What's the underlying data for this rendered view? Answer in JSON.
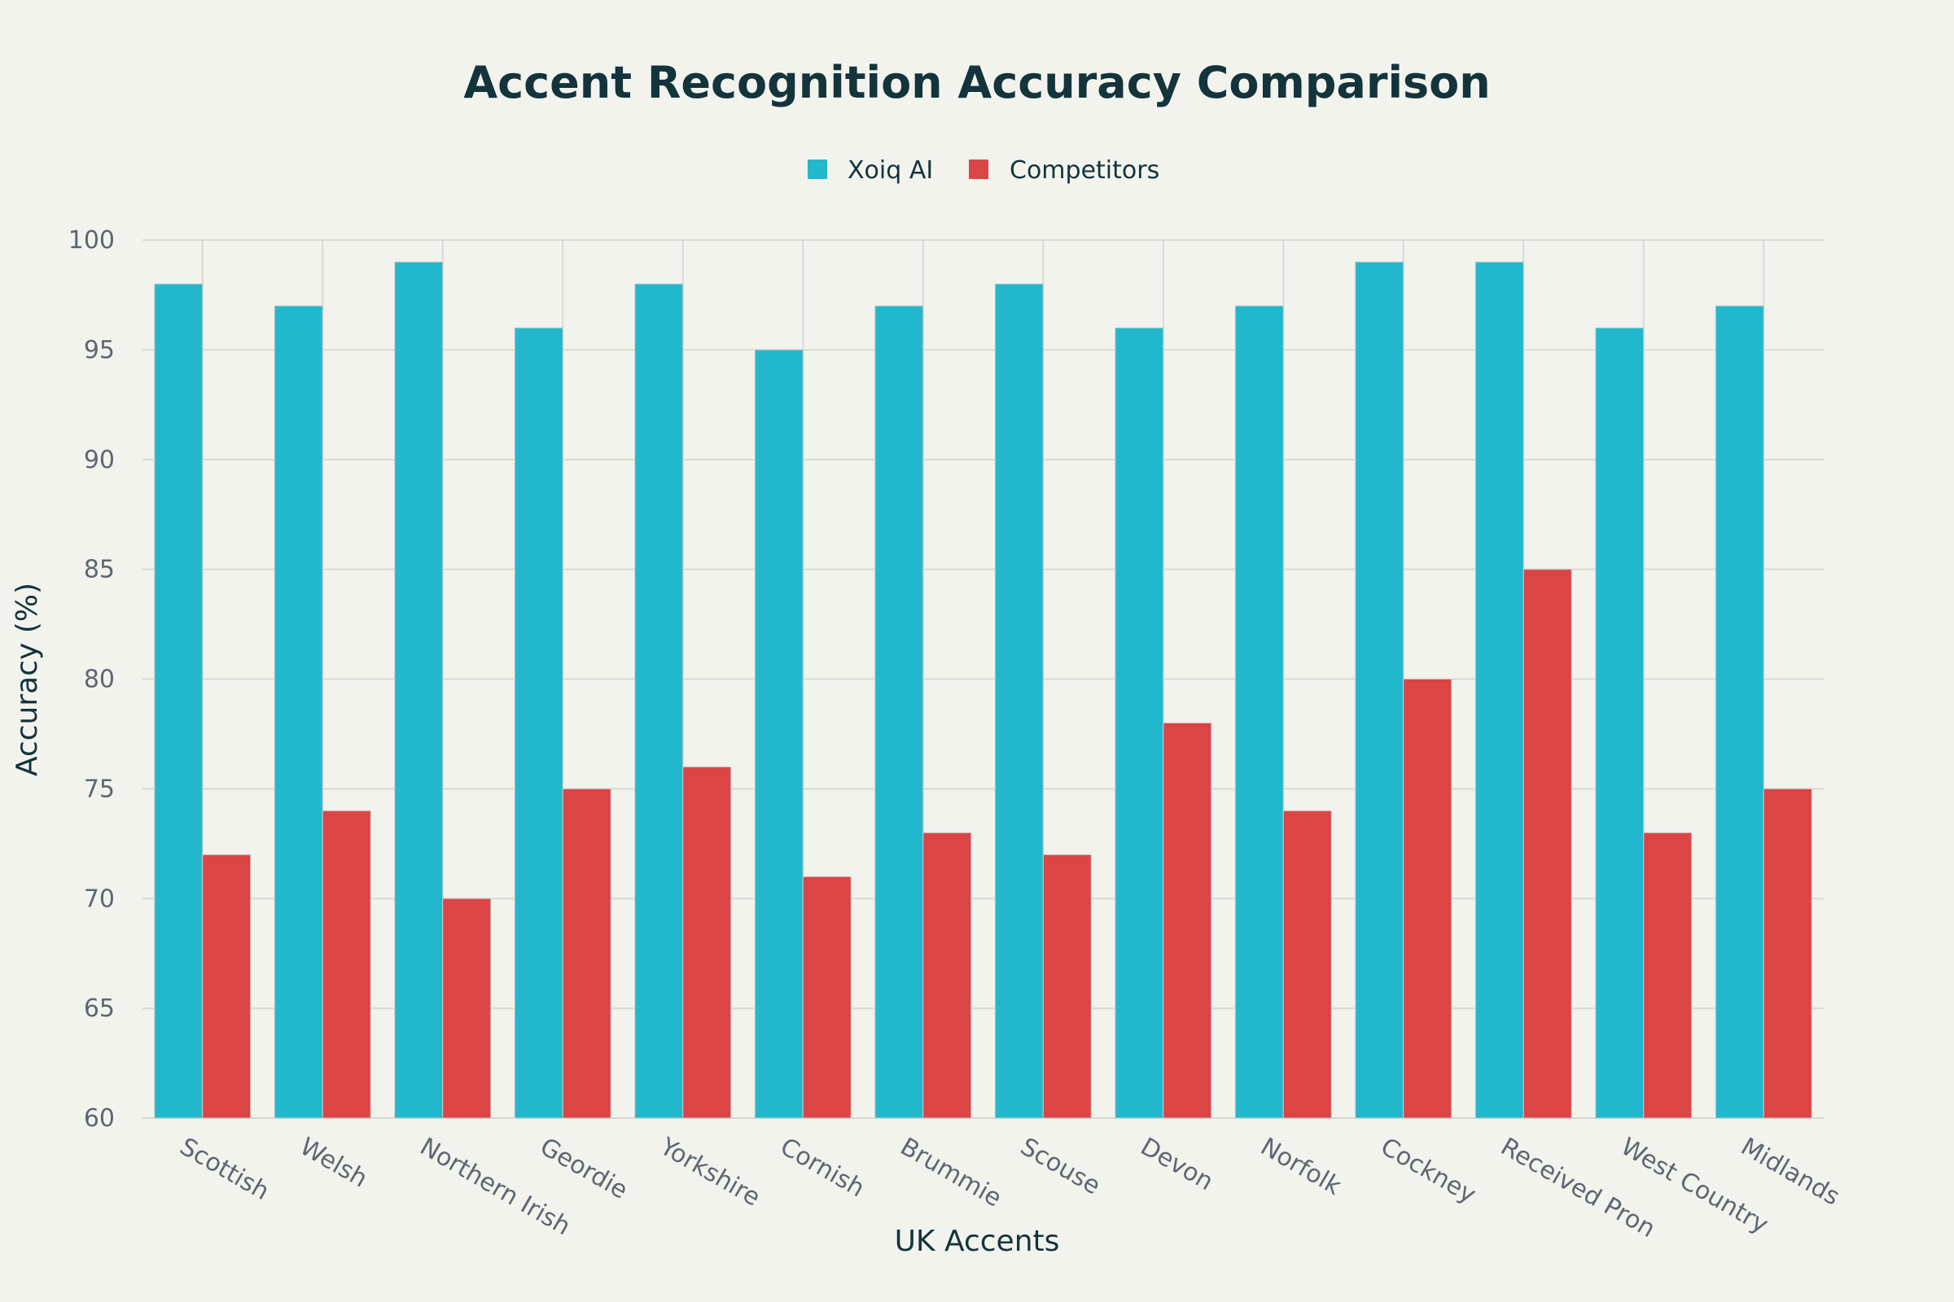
{
  "chart_data": {
    "type": "bar",
    "title": "Accent Recognition Accuracy Comparison",
    "xlabel": "UK Accents",
    "ylabel": "Accuracy (%)",
    "ylim": [
      60,
      100
    ],
    "yticks": [
      60,
      65,
      70,
      75,
      80,
      85,
      90,
      95,
      100
    ],
    "grid": true,
    "legend_placement": "top-center",
    "categories": [
      "Scottish",
      "Welsh",
      "Northern Irish",
      "Geordie",
      "Yorkshire",
      "Cornish",
      "Brummie",
      "Scouse",
      "Devon",
      "Norfolk",
      "Cockney",
      "Received Pron",
      "West Country",
      "Midlands"
    ],
    "series": [
      {
        "name": "Xoiq AI",
        "color": "#21b8cd",
        "values": [
          98,
          97,
          99,
          96,
          98,
          95,
          97,
          98,
          96,
          97,
          99,
          99,
          96,
          97
        ]
      },
      {
        "name": "Competitors",
        "color": "#db4545",
        "values": [
          72,
          74,
          70,
          75,
          76,
          71,
          73,
          72,
          78,
          74,
          80,
          85,
          73,
          75
        ]
      }
    ]
  }
}
